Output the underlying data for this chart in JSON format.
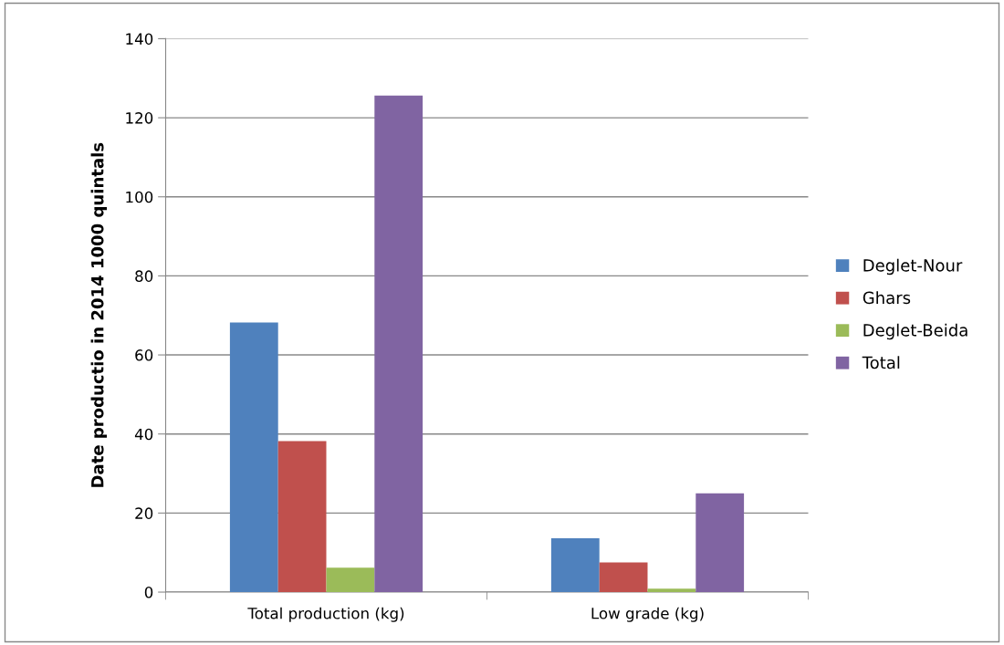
{
  "chart_data": {
    "type": "bar",
    "ylabel": "Date productio in 2014 1000 quintals",
    "categories": [
      "Total production (kg)",
      "Low grade (kg)"
    ],
    "series": [
      {
        "name": "Deglet-Nour",
        "color": "#4f81bd",
        "values": [
          68.2,
          13.6
        ]
      },
      {
        "name": "Ghars",
        "color": "#c0504d",
        "values": [
          38.2,
          7.5
        ]
      },
      {
        "name": "Deglet-Beida",
        "color": "#9bbb59",
        "values": [
          6.2,
          0.9
        ]
      },
      {
        "name": "Total",
        "color": "#8064a2",
        "values": [
          125.6,
          25.0
        ]
      }
    ],
    "ylim": [
      0,
      140
    ],
    "yticks": [
      0,
      20,
      40,
      60,
      80,
      100,
      120,
      140
    ],
    "grid": "y",
    "legend": "right"
  }
}
